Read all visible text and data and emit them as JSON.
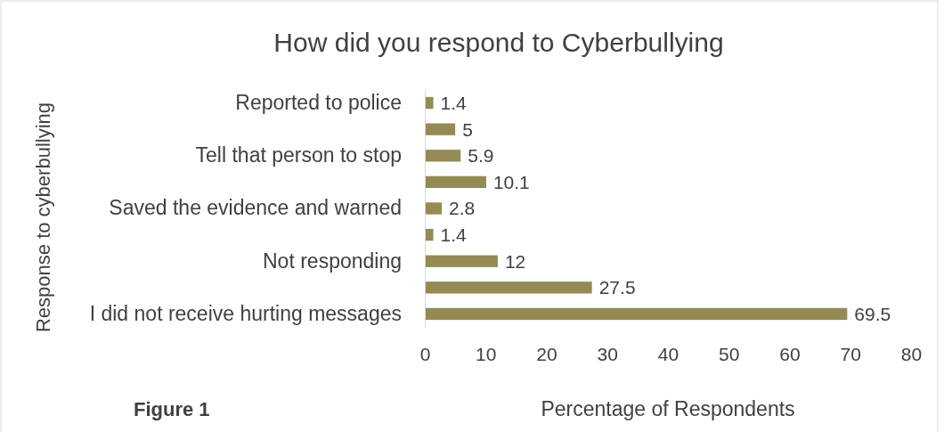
{
  "chart_data": {
    "type": "bar",
    "orientation": "horizontal",
    "title": "How did you respond to Cyberbullying",
    "xlabel": "Percentage of Respondents",
    "ylabel": "Response to cyberbullying",
    "categories": [
      "Reported to police",
      null,
      "Tell that person to stop",
      null,
      "Saved the evidence and warned",
      null,
      "Not responding",
      null,
      "I did not receive hurting messages"
    ],
    "values": [
      1.4,
      5,
      5.9,
      10.1,
      2.8,
      1.4,
      12,
      27.5,
      69.5
    ],
    "color": "#948a54",
    "xlim": [
      0,
      80
    ],
    "xticks": [
      0,
      10,
      20,
      30,
      40,
      50,
      60,
      70,
      80
    ],
    "grid": false,
    "data_labels": true,
    "annotations": [
      "Figure 1"
    ]
  }
}
